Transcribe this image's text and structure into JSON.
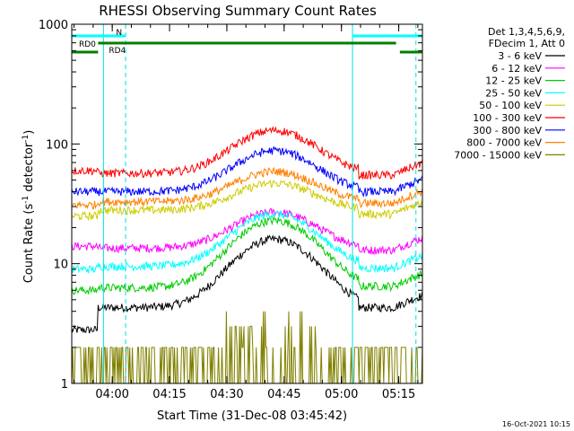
{
  "chart_data": {
    "type": "line",
    "title": "RHESSI Observing Summary Count Rates",
    "xlabel": "Start Time (31-Dec-08 03:45:42)",
    "ylabel_main": "Count Rate (s",
    "ylabel_sup1": "-1",
    "ylabel_mid": " detector",
    "ylabel_sup2": "-1",
    "ylabel_end": ")",
    "yscale": "log",
    "ylim": [
      1,
      1000
    ],
    "xlim_minutes": [
      3.7,
      95.5
    ],
    "x_ticks": [
      {
        "label": "04:00",
        "min": 14.3
      },
      {
        "label": "04:15",
        "min": 29.3
      },
      {
        "label": "04:30",
        "min": 44.3
      },
      {
        "label": "04:45",
        "min": 59.3
      },
      {
        "label": "05:00",
        "min": 74.3
      },
      {
        "label": "05:15",
        "min": 89.3
      }
    ],
    "y_ticks": [
      {
        "label": "1",
        "v": 1
      },
      {
        "label": "10",
        "v": 10
      },
      {
        "label": "100",
        "v": 100
      },
      {
        "label": "1000",
        "v": 1000
      }
    ],
    "legend_header": [
      "Det 1,3,4,5,6,9,",
      "FDecim 1, Att 0"
    ],
    "series": [
      {
        "name": "3 - 6 keV",
        "color": "#000000",
        "base": 4.3,
        "peak": 16,
        "pre": 2.8,
        "post": 4.3
      },
      {
        "name": "6 - 12 keV",
        "color": "#ff00ff",
        "base": 13.5,
        "peak": 27,
        "pre": 14,
        "post": 13
      },
      {
        "name": "12 - 25 keV",
        "color": "#00cc00",
        "base": 6.3,
        "peak": 23,
        "pre": 6,
        "post": 6.5
      },
      {
        "name": "25 - 50 keV",
        "color": "#00ffff",
        "base": 9.5,
        "peak": 26,
        "pre": 9,
        "post": 9.2
      },
      {
        "name": "50 - 100 keV",
        "color": "#cccc00",
        "base": 28,
        "peak": 47,
        "pre": 25,
        "post": 26
      },
      {
        "name": "100 - 300 keV",
        "color": "#ff0000",
        "base": 57,
        "peak": 130,
        "pre": 60,
        "post": 55
      },
      {
        "name": "300 - 800 keV",
        "color": "#0000ff",
        "base": 40,
        "peak": 88,
        "pre": 40,
        "post": 40
      },
      {
        "name": "800 - 7000 keV",
        "color": "#ff8000",
        "base": 33,
        "peak": 59,
        "pre": 31,
        "post": 32
      },
      {
        "name": "7000 - 15000 keV",
        "color": "#808000",
        "base": 1,
        "peak": 4,
        "pre": 1.6,
        "post": 1.6
      }
    ],
    "peak_time_min": 56.8,
    "active_interval_min": [
      10.6,
      78.8
    ],
    "dashed_markers_min": [
      17.8,
      93.8
    ],
    "solid_markers_min": [
      12.0,
      77.2
    ],
    "status_bars": [
      {
        "name": "N",
        "color": "#00ffff",
        "segments": [
          [
            3.7,
            17.8
          ],
          [
            77.2,
            95.5
          ]
        ]
      },
      {
        "name": "RD0",
        "color": "#008000",
        "segments": [
          [
            10.6,
            88.6
          ]
        ]
      },
      {
        "name": "RD4",
        "color": "#008000",
        "segments": [
          [
            3.7,
            10.6
          ],
          [
            89.6,
            95.5
          ]
        ]
      }
    ]
  },
  "footer": {
    "timestamp": "16-Oct-2021 10:15"
  }
}
